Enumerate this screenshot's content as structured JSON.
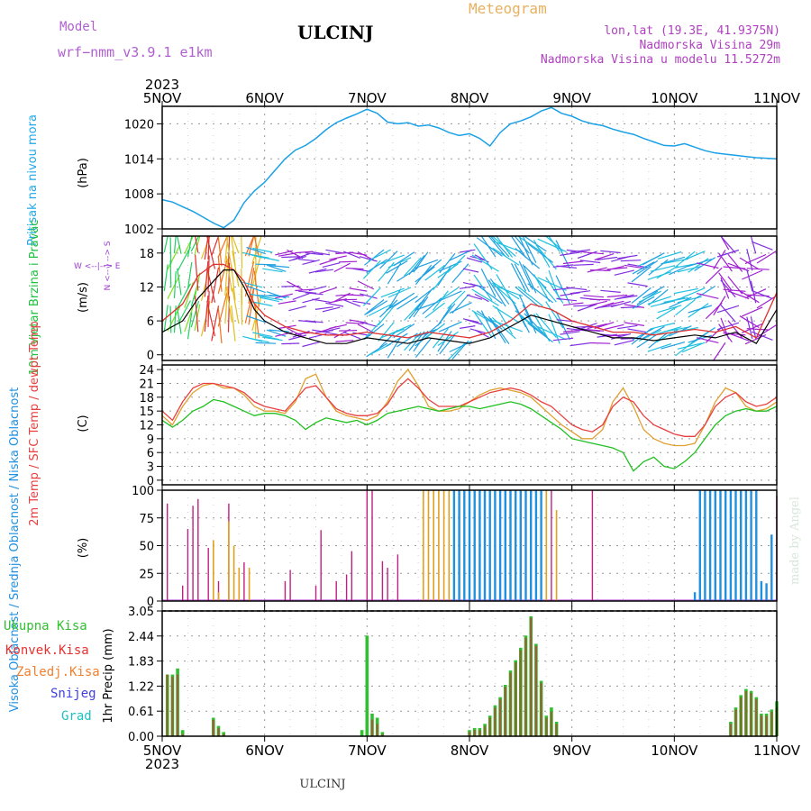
{
  "header": {
    "model_label": "Model",
    "model_name": "wrf−nmm_v3.9.1  e1km",
    "station": "ULCINJ",
    "product": "Meteogram",
    "location": "lon,lat (19.3E, 41.9375N)",
    "altitude": "Nadmorska Visina 29m",
    "model_altitude": "Nadmorska Visina u modelu 11.5272m"
  },
  "footer": {
    "station": "ULCINJ",
    "credit": "made by Angel"
  },
  "time_axis": {
    "year": "2023",
    "days": [
      "5NOV",
      "6NOV",
      "7NOV",
      "8NOV",
      "9NOV",
      "10NOV",
      "11NOV"
    ]
  },
  "colors": {
    "pressure": "#1aa0e6",
    "temp_2m": "#e84040",
    "temp_sfc": "#e0a030",
    "dewpoint": "#20c020",
    "cloud_high": "#2090e0",
    "cloud_mid": "#e0a020",
    "cloud_low": "#c02080",
    "precip_total": "#30c030",
    "precip_conv": "#e83030",
    "precip_froz": "#f08030",
    "snow": "#4040e0",
    "hail": "#20c0c0",
    "wind_gust": "#e03030",
    "wind_speed": "#000000"
  },
  "chart_data": [
    {
      "type": "line",
      "panel": "pressure",
      "ylabel": "Pritisak na nivou mora",
      "unit": "(hPa)",
      "x_days": [
        0,
        0.1,
        0.2,
        0.3,
        0.4,
        0.5,
        0.6,
        0.7,
        0.8,
        0.9,
        1.0,
        1.1,
        1.2,
        1.3,
        1.4,
        1.5,
        1.6,
        1.7,
        1.8,
        1.9,
        2.0,
        2.1,
        2.2,
        2.3,
        2.4,
        2.5,
        2.6,
        2.7,
        2.8,
        2.9,
        3.0,
        3.1,
        3.2,
        3.3,
        3.4,
        3.5,
        3.6,
        3.7,
        3.8,
        3.9,
        4.0,
        4.1,
        4.2,
        4.3,
        4.4,
        4.5,
        4.6,
        4.7,
        4.8,
        4.9,
        5.0,
        5.1,
        5.2,
        5.3,
        5.4,
        5.5,
        5.6,
        5.7,
        5.8,
        5.9,
        6.0
      ],
      "values": [
        1007,
        1006.6,
        1005.8,
        1005,
        1004,
        1003,
        1002.2,
        1003.5,
        1006.5,
        1008.5,
        1010,
        1012,
        1014,
        1015.5,
        1016.3,
        1017.5,
        1019,
        1020.2,
        1021,
        1021.7,
        1022.5,
        1021.8,
        1020.3,
        1020,
        1020.2,
        1019.6,
        1019.8,
        1019.3,
        1018.5,
        1018,
        1018.3,
        1017.5,
        1016.2,
        1018.5,
        1020,
        1020.5,
        1021.2,
        1022.2,
        1022.8,
        1021.8,
        1021.3,
        1020.5,
        1020,
        1019.7,
        1019.1,
        1018.6,
        1018.2,
        1017.5,
        1016.9,
        1016.3,
        1016.2,
        1016.6,
        1016,
        1015.4,
        1015,
        1014.8,
        1014.6,
        1014.4,
        1014.2,
        1014.1,
        1014
      ],
      "yticks": [
        1002,
        1008,
        1014,
        1020
      ],
      "ylim": [
        1002,
        1023
      ]
    },
    {
      "type": "line",
      "panel": "wind",
      "ylabel": "10m Vjetar Brzina i Pravac",
      "unit": "(m/s)",
      "compass": "W <--|--> E",
      "compass_v": "N <-- | --> S",
      "yticks": [
        0,
        6,
        12,
        18
      ],
      "ylim": [
        -1,
        21
      ],
      "x_days": [
        0,
        0.2,
        0.35,
        0.5,
        0.6,
        0.7,
        0.8,
        0.9,
        1.0,
        1.2,
        1.4,
        1.6,
        1.8,
        2.0,
        2.2,
        2.4,
        2.6,
        2.8,
        3.0,
        3.2,
        3.4,
        3.6,
        3.8,
        4.0,
        4.2,
        4.4,
        4.6,
        4.8,
        5.0,
        5.2,
        5.4,
        5.6,
        5.8,
        6.0
      ],
      "speed": [
        4,
        6,
        10,
        13,
        15,
        15,
        12,
        8,
        6,
        4,
        3,
        2,
        2,
        3,
        2.5,
        2,
        3,
        2.5,
        2,
        3,
        5,
        7,
        6,
        5,
        4,
        3,
        3,
        2.5,
        3,
        3.5,
        3,
        4,
        2,
        8
      ],
      "gust": [
        6,
        9,
        14,
        16,
        16,
        15,
        13,
        9,
        7,
        5,
        4,
        3.5,
        3.5,
        4,
        3.5,
        3,
        4,
        3.5,
        3,
        4,
        6,
        9,
        8,
        6,
        5,
        4,
        4,
        3.5,
        4,
        4.5,
        4,
        5,
        3,
        11
      ]
    },
    {
      "type": "line",
      "panel": "temperature",
      "ylabel": "2m Temp / SFC Temp / dewpt Temp",
      "unit": "(C)",
      "yticks": [
        0,
        3,
        6,
        9,
        12,
        15,
        18,
        21,
        24
      ],
      "ylim": [
        -1,
        25
      ],
      "x_days": [
        0,
        0.1,
        0.2,
        0.3,
        0.4,
        0.5,
        0.6,
        0.7,
        0.8,
        0.9,
        1.0,
        1.1,
        1.2,
        1.3,
        1.4,
        1.5,
        1.6,
        1.7,
        1.8,
        1.9,
        2.0,
        2.1,
        2.2,
        2.3,
        2.4,
        2.5,
        2.6,
        2.7,
        2.8,
        2.9,
        3.0,
        3.1,
        3.2,
        3.3,
        3.4,
        3.5,
        3.6,
        3.7,
        3.8,
        3.9,
        4.0,
        4.1,
        4.2,
        4.3,
        4.4,
        4.5,
        4.6,
        4.7,
        4.8,
        4.9,
        5.0,
        5.1,
        5.2,
        5.3,
        5.4,
        5.5,
        5.6,
        5.7,
        5.8,
        5.9,
        6.0
      ],
      "series": [
        {
          "name": "2m Temp",
          "values": [
            15,
            13,
            17,
            20,
            21,
            21,
            20.5,
            20,
            19,
            17,
            16,
            15.5,
            15,
            17.5,
            20,
            20.5,
            18,
            15.5,
            14.5,
            14,
            14,
            14.5,
            16.5,
            20,
            22,
            20,
            17.5,
            16,
            16,
            16,
            17,
            18,
            19,
            19.5,
            20,
            19.5,
            18.5,
            17,
            16,
            14,
            12,
            11,
            10.5,
            12,
            16,
            18,
            17,
            14,
            12,
            11,
            10,
            9.5,
            9.5,
            12,
            16,
            18,
            19,
            17,
            16,
            16.5,
            18
          ]
        },
        {
          "name": "SFC Temp",
          "values": [
            14,
            12,
            16,
            19,
            20.5,
            21,
            20,
            20,
            18.5,
            16,
            15,
            15,
            14.5,
            17,
            22,
            23,
            18,
            15,
            14,
            13.5,
            13,
            14,
            17,
            21.5,
            24,
            20.5,
            16,
            15,
            15,
            15.5,
            17,
            18.5,
            19.5,
            20,
            19.5,
            19,
            18,
            16,
            14,
            12,
            10.5,
            9,
            9,
            11,
            17,
            20,
            16,
            11,
            9,
            8,
            7.5,
            7.5,
            8,
            12,
            17,
            20,
            19,
            16,
            15,
            15.5,
            17
          ]
        },
        {
          "name": "dewpt Temp",
          "values": [
            13,
            11.5,
            13,
            15,
            16,
            17.5,
            17,
            16,
            15,
            14,
            14.5,
            14.5,
            14,
            13,
            11,
            12.5,
            13.5,
            13,
            12.5,
            13,
            12,
            13,
            14.5,
            15,
            15.5,
            16,
            15.5,
            15,
            15.5,
            16,
            16,
            15.5,
            16,
            16.5,
            17,
            16.5,
            15.5,
            14,
            12.5,
            11,
            9,
            8.5,
            8,
            7.5,
            7,
            6,
            2,
            4,
            5,
            3,
            2.5,
            4,
            6,
            9,
            12,
            14,
            15,
            15.5,
            15,
            15,
            16
          ]
        }
      ]
    },
    {
      "type": "bar",
      "panel": "clouds",
      "ylabel": "Visoka Oblacnost / Srednja Oblacnost / Niska Oblacnost",
      "unit": "(%)",
      "yticks": [
        0,
        25,
        50,
        75,
        100
      ],
      "ylim": [
        0,
        100
      ],
      "series": [
        {
          "name": "Niska Oblacnost",
          "x_days": [
            0.05,
            0.2,
            0.25,
            0.3,
            0.35,
            0.45,
            0.5,
            0.55,
            0.65,
            0.75,
            0.8,
            1.2,
            1.25,
            1.5,
            1.55,
            1.7,
            1.8,
            1.85,
            2.0,
            2.05,
            2.15,
            2.2,
            2.3,
            3.3,
            3.5,
            3.6,
            3.7,
            3.8,
            4.2,
            6.0
          ],
          "values": [
            88,
            14,
            65,
            86,
            92,
            48,
            32,
            18,
            88,
            30,
            35,
            18,
            28,
            14,
            64,
            18,
            24,
            45,
            100,
            100,
            36,
            30,
            42,
            100,
            100,
            100,
            100,
            100,
            100,
            95
          ]
        },
        {
          "name": "Srednja Oblacnost",
          "x_days": [
            0.5,
            0.55,
            0.65,
            0.7,
            0.75,
            0.85,
            2.55,
            2.6,
            2.65,
            2.7,
            2.75,
            2.8,
            2.85,
            2.9,
            2.95,
            3.0,
            3.05,
            3.1,
            3.15,
            3.2,
            3.25,
            3.35,
            3.4,
            3.45,
            3.55,
            3.65,
            3.75,
            3.85,
            5.4,
            5.5,
            5.6,
            5.65,
            5.7,
            5.75
          ],
          "values": [
            55,
            8,
            72,
            50,
            30,
            30,
            100,
            100,
            100,
            100,
            100,
            100,
            100,
            100,
            100,
            100,
            100,
            100,
            100,
            100,
            100,
            100,
            100,
            100,
            100,
            100,
            100,
            82,
            92,
            82,
            80,
            90,
            88,
            88
          ]
        },
        {
          "name": "Visoka Oblacnost",
          "x_days": [
            2.85,
            2.9,
            2.95,
            3.0,
            3.05,
            3.1,
            3.15,
            3.2,
            3.25,
            3.3,
            3.35,
            3.4,
            3.45,
            3.5,
            3.55,
            3.6,
            3.65,
            3.7,
            5.2,
            5.25,
            5.3,
            5.35,
            5.4,
            5.45,
            5.5,
            5.55,
            5.6,
            5.65,
            5.7,
            5.75,
            5.8,
            5.85,
            5.9,
            5.95
          ],
          "values": [
            100,
            100,
            100,
            100,
            100,
            100,
            100,
            100,
            100,
            100,
            100,
            100,
            100,
            100,
            100,
            100,
            100,
            100,
            8,
            100,
            100,
            100,
            100,
            100,
            100,
            100,
            100,
            100,
            100,
            100,
            100,
            18,
            16,
            60
          ]
        }
      ]
    },
    {
      "type": "bar",
      "panel": "precipitation",
      "ylabel": "1hr Precip (mm)",
      "legend": [
        "Ukupna Kisa",
        "Konvek.Kisa",
        "Zaledj.Kisa",
        "Snijeg",
        "Grad"
      ],
      "yticks": [
        0,
        0.61,
        1.22,
        1.83,
        2.44,
        3.05
      ],
      "ylim": [
        0,
        3.05
      ],
      "x_days": [
        0.05,
        0.1,
        0.15,
        0.2,
        0.5,
        0.55,
        0.6,
        1.95,
        2.0,
        2.05,
        2.1,
        2.15,
        3.0,
        3.05,
        3.1,
        3.15,
        3.2,
        3.25,
        3.3,
        3.35,
        3.4,
        3.45,
        3.5,
        3.55,
        3.6,
        3.65,
        3.7,
        3.75,
        3.8,
        3.85,
        5.55,
        5.6,
        5.65,
        5.7,
        5.75,
        5.8,
        5.85,
        5.9,
        5.95,
        6.0
      ],
      "total": [
        1.5,
        1.5,
        1.65,
        0.15,
        0.45,
        0.25,
        0.1,
        0.15,
        2.45,
        0.55,
        0.45,
        0.1,
        0.15,
        0.2,
        0.2,
        0.3,
        0.5,
        0.75,
        0.95,
        1.25,
        1.6,
        1.85,
        2.15,
        2.45,
        2.92,
        2.25,
        1.35,
        0.5,
        0.7,
        0.35,
        0.35,
        0.7,
        1.0,
        1.15,
        1.1,
        0.95,
        0.55,
        0.55,
        0.65,
        0.85
      ],
      "convective": [
        1.5,
        1.45,
        1.5,
        0.05,
        0.4,
        0.2,
        0.05,
        0.0,
        0.0,
        0.4,
        0.3,
        0.05,
        0.1,
        0.15,
        0.15,
        0.25,
        0.45,
        0.7,
        0.9,
        1.2,
        1.55,
        1.8,
        2.1,
        2.4,
        2.88,
        2.2,
        1.3,
        0.45,
        0.6,
        0.3,
        0.3,
        0.65,
        0.95,
        1.1,
        1.05,
        0.9,
        0.5,
        0.5,
        0.6,
        0.7
      ]
    }
  ]
}
